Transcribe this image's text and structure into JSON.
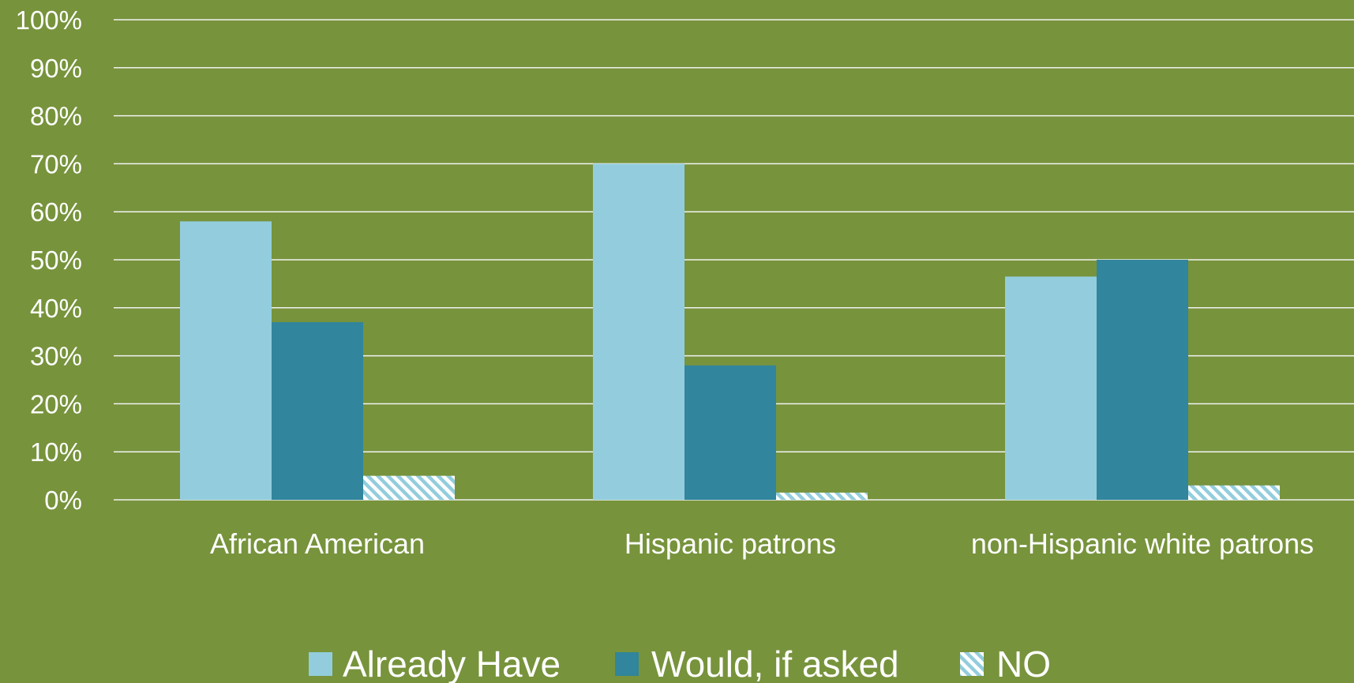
{
  "colors": {
    "background": "#77933C",
    "grid": "#F2F2F2",
    "text": "#FFFFFF",
    "already_have": "#93CDDD",
    "would_if_asked": "#31859C",
    "no_pattern": "#93CDDD"
  },
  "chart_data": {
    "type": "bar",
    "title": "",
    "xlabel": "",
    "ylabel": "",
    "categories": [
      "African American",
      "Hispanic patrons",
      "non-Hispanic white patrons"
    ],
    "series": [
      {
        "name": "Already Have",
        "values": [
          58,
          70,
          46.5
        ],
        "fill": "solid",
        "color": "#93CDDD"
      },
      {
        "name": "Would, if asked",
        "values": [
          37,
          28,
          50
        ],
        "fill": "solid",
        "color": "#31859C"
      },
      {
        "name": "NO",
        "values": [
          5,
          1.5,
          3
        ],
        "fill": "hatched",
        "color": "#93CDDD"
      }
    ],
    "ylim": [
      0,
      100
    ],
    "yticks": [
      0,
      10,
      20,
      30,
      40,
      50,
      60,
      70,
      80,
      90,
      100
    ],
    "ytick_labels": [
      "0%",
      "10%",
      "20%",
      "30%",
      "40%",
      "50%",
      "60%",
      "70%",
      "80%",
      "90%",
      "100%"
    ],
    "grid": true,
    "legend_position": "bottom"
  }
}
